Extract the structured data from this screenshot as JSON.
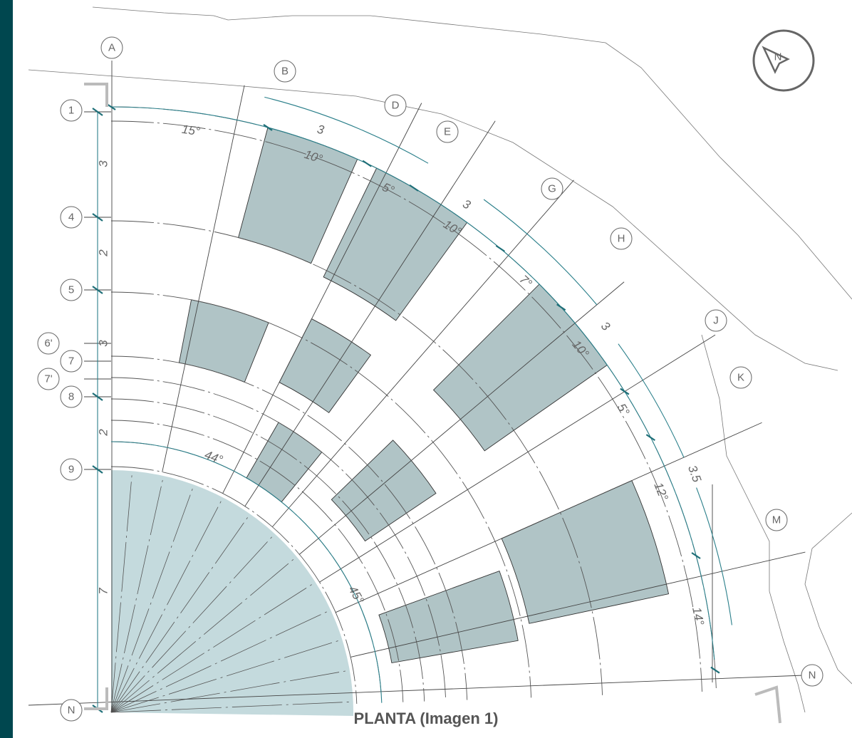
{
  "caption": "PLANTA (Imagen 1)",
  "axes_grid": {
    "radial": [
      "A",
      "B",
      "D",
      "E",
      "G",
      "H",
      "J",
      "K",
      "M",
      "N"
    ],
    "concentric": [
      "1",
      "4",
      "5",
      "6'",
      "7",
      "7'",
      "8",
      "9"
    ]
  },
  "dimensions": {
    "left_vertical": [
      "3",
      "2",
      "3",
      "2",
      "7"
    ],
    "angles": [
      "15°",
      "10°",
      "5°",
      "10°",
      "7°",
      "10°",
      "5°",
      "12°",
      "14°",
      "44°",
      "45°"
    ],
    "arcs": [
      "3",
      "3",
      "3",
      "3.5"
    ]
  },
  "colors": {
    "sidebar": "#00474f",
    "room_fill": "#b0c4c6",
    "plaza_fill": "#c4dadd",
    "dimension": "#2a7f8a"
  },
  "icons": [
    "compass-icon"
  ]
}
